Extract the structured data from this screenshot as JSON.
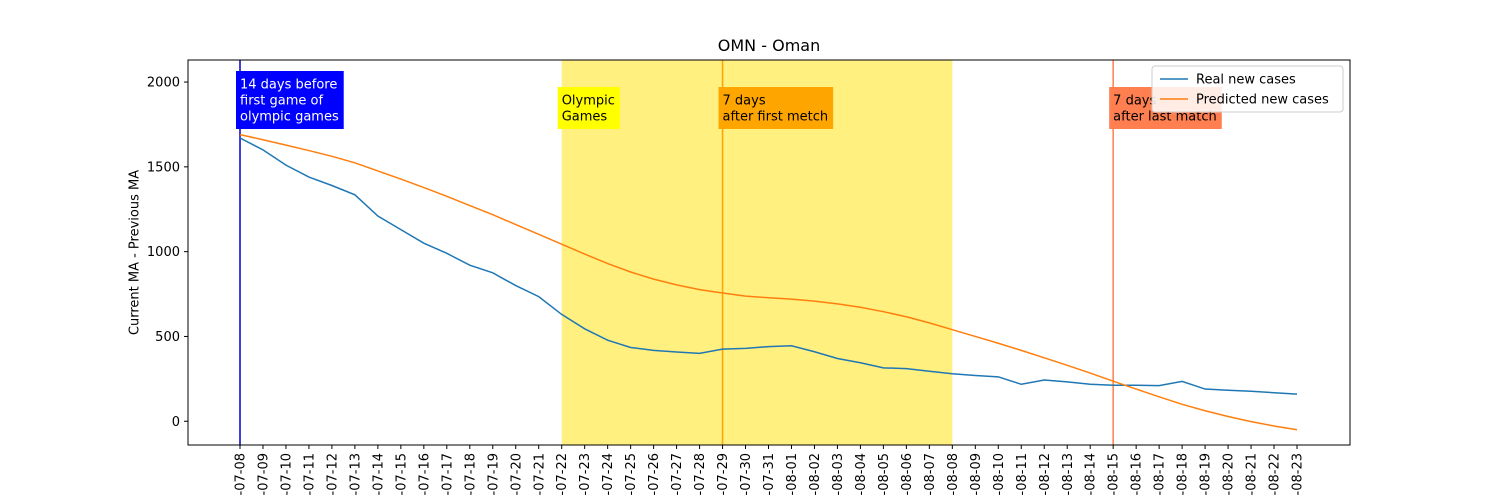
{
  "chart_data": {
    "type": "line",
    "title": "OMN - Oman",
    "xlabel": "",
    "ylabel": "Current MA - Previous MA",
    "ylim": [
      -140,
      2130
    ],
    "yticks": [
      0,
      500,
      1000,
      1500,
      2000
    ],
    "grid": false,
    "legend_position": "top-right",
    "x": [
      "2021-07-08",
      "2021-07-09",
      "2021-07-10",
      "2021-07-11",
      "2021-07-12",
      "2021-07-13",
      "2021-07-14",
      "2021-07-15",
      "2021-07-16",
      "2021-07-17",
      "2021-07-18",
      "2021-07-19",
      "2021-07-20",
      "2021-07-21",
      "2021-07-22",
      "2021-07-23",
      "2021-07-24",
      "2021-07-25",
      "2021-07-26",
      "2021-07-27",
      "2021-07-28",
      "2021-07-29",
      "2021-07-30",
      "2021-07-31",
      "2021-08-01",
      "2021-08-02",
      "2021-08-03",
      "2021-08-04",
      "2021-08-05",
      "2021-08-06",
      "2021-08-07",
      "2021-08-08",
      "2021-08-09",
      "2021-08-10",
      "2021-08-11",
      "2021-08-12",
      "2021-08-13",
      "2021-08-14",
      "2021-08-15",
      "2021-08-16",
      "2021-08-17",
      "2021-08-18",
      "2021-08-19",
      "2021-08-20",
      "2021-08-21",
      "2021-08-22",
      "2021-08-23"
    ],
    "x_tick_labels": [
      "-07-08",
      "-07-09",
      "-07-10",
      "-07-11",
      "-07-12",
      "-07-13",
      "-07-14",
      "-07-15",
      "-07-16",
      "-07-17",
      "-07-18",
      "-07-19",
      "-07-20",
      "-07-21",
      "-07-22",
      "-07-23",
      "-07-24",
      "-07-25",
      "-07-26",
      "-07-27",
      "-07-28",
      "-07-29",
      "-07-30",
      "-07-31",
      "-08-01",
      "-08-02",
      "-08-03",
      "-08-04",
      "-08-05",
      "-08-06",
      "-08-07",
      "-08-08",
      "-08-09",
      "-08-10",
      "-08-11",
      "-08-12",
      "-08-13",
      "-08-14",
      "-08-15",
      "-08-16",
      "-08-17",
      "-08-18",
      "-08-19",
      "-08-20",
      "-08-21",
      "-08-22",
      "-08-23"
    ],
    "series": [
      {
        "name": "Real new cases",
        "color": "#1f77b4",
        "values": [
          1670,
          1600,
          1510,
          1440,
          1390,
          1335,
          1210,
          1130,
          1050,
          990,
          920,
          875,
          800,
          735,
          630,
          545,
          478,
          435,
          418,
          408,
          400,
          425,
          430,
          440,
          445,
          410,
          370,
          345,
          315,
          310,
          295,
          280,
          270,
          262,
          218,
          243,
          232,
          218,
          212,
          212,
          210,
          235,
          190,
          183,
          177,
          168,
          160
        ]
      },
      {
        "name": "Predicted new cases",
        "color": "#ff7f0e",
        "values": [
          1690,
          1660,
          1628,
          1596,
          1562,
          1524,
          1476,
          1428,
          1378,
          1326,
          1272,
          1218,
          1160,
          1102,
          1044,
          986,
          930,
          880,
          838,
          804,
          776,
          756,
          738,
          728,
          720,
          708,
          692,
          672,
          646,
          616,
          580,
          540,
          500,
          460,
          418,
          374,
          330,
          284,
          236,
          190,
          144,
          100,
          62,
          28,
          -2,
          -28,
          -50
        ]
      }
    ],
    "shaded_region": {
      "start": "2021-07-22",
      "end": "2021-08-08",
      "color": "#fff080"
    },
    "vertical_lines": [
      {
        "x": "2021-07-08",
        "color": "#0000cd"
      },
      {
        "x": "2021-07-29",
        "color": "#ffa500"
      },
      {
        "x": "2021-08-15",
        "color": "#ff7f50"
      }
    ],
    "annotations": [
      {
        "x": "2021-07-08",
        "lines": [
          "14 days before",
          "first game of",
          "olympic games"
        ],
        "bg": "#0000ff",
        "fg": "#ffffff"
      },
      {
        "x": "2021-07-22",
        "lines": [
          "Olympic",
          "Games"
        ],
        "bg": "#ffff00",
        "fg": "#000000"
      },
      {
        "x": "2021-07-29",
        "lines": [
          "7 days",
          "after first metch"
        ],
        "bg": "#ffa500",
        "fg": "#000000"
      },
      {
        "x": "2021-08-15",
        "lines": [
          "7 days",
          "after last match"
        ],
        "bg": "#ff7f50",
        "fg": "#000000"
      }
    ]
  }
}
